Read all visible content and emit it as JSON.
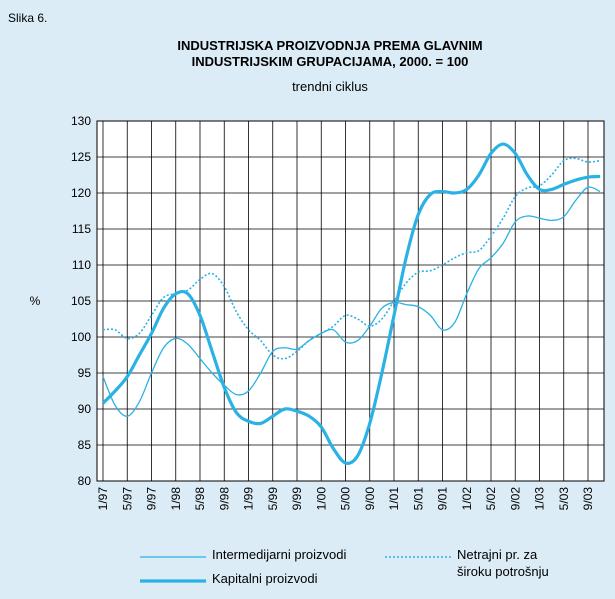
{
  "figure_label": "Slika 6.",
  "chart_data": {
    "type": "line",
    "title": [
      "INDUSTRIJSKA PROIZVODNJA PREMA GLAVNIM",
      "INDUSTRIJSKIM GRUPACIJAMA, 2000. = 100"
    ],
    "subtitle": "trendni ciklus",
    "y_label": "%",
    "categories": [
      "1/97",
      null,
      "5/97",
      null,
      "9/97",
      null,
      "1/98",
      null,
      "5/98",
      null,
      "9/98",
      null,
      "1/99",
      null,
      "5/99",
      null,
      "9/99",
      null,
      "1/00",
      null,
      "5/00",
      null,
      "9/00",
      null,
      "1/01",
      null,
      "5/01",
      null,
      "9/01",
      null,
      "1/02",
      null,
      "5/02",
      null,
      "9/02",
      null,
      "1/03",
      null,
      "5/03",
      null,
      "9/03",
      null
    ],
    "ylim": [
      80,
      130
    ],
    "yticks": [
      80,
      85,
      90,
      95,
      100,
      105,
      110,
      115,
      120,
      125,
      130
    ],
    "grid": true,
    "series": [
      {
        "name": "Intermedijarni proizvodi",
        "color": "#2ab2e4",
        "width": 1.3,
        "dash": "solid",
        "values": [
          94.5,
          90.5,
          89,
          91,
          95,
          98.5,
          99.8,
          99,
          97,
          95,
          93.3,
          92,
          92.5,
          95,
          98,
          98.5,
          98.3,
          99.5,
          100.5,
          101,
          99.3,
          99.5,
          101.5,
          104,
          104.8,
          104.5,
          104.2,
          103,
          101,
          102,
          106,
          109.5,
          111,
          113,
          116,
          116.8,
          116.5,
          116.2,
          116.7,
          119,
          120.8,
          120.2
        ]
      },
      {
        "name": "Kapitalni proizvodi",
        "color": "#2ab2e4",
        "width": 3.2,
        "dash": "solid",
        "values": [
          90.8,
          92.5,
          94.5,
          97.5,
          100.5,
          104,
          106,
          106,
          103,
          98,
          93,
          89.5,
          88.3,
          88,
          89,
          90,
          89.7,
          89,
          87.5,
          84.5,
          82.5,
          83.5,
          88,
          95,
          103,
          111,
          117,
          119.8,
          120.2,
          120,
          120.5,
          122.5,
          125.5,
          126.8,
          125.5,
          122.5,
          120.5,
          120.5,
          121.2,
          121.8,
          122.2,
          122.3
        ]
      },
      {
        "name": "Netrajni pr. za široku potrošnju",
        "color": "#2ab2e4",
        "width": 1.6,
        "dash": "dotted",
        "values": [
          101,
          101,
          99.8,
          100.5,
          103,
          105.5,
          106,
          106.5,
          108,
          108.8,
          107,
          103.5,
          101,
          99.5,
          97.5,
          97,
          98,
          99.5,
          100.5,
          101.5,
          103,
          102.5,
          101.5,
          102.5,
          105,
          107.5,
          109,
          109.2,
          110,
          111,
          111.7,
          112,
          114,
          116.5,
          119.5,
          120.7,
          121,
          122.5,
          124.5,
          124.8,
          124.3,
          124.5
        ]
      }
    ]
  }
}
